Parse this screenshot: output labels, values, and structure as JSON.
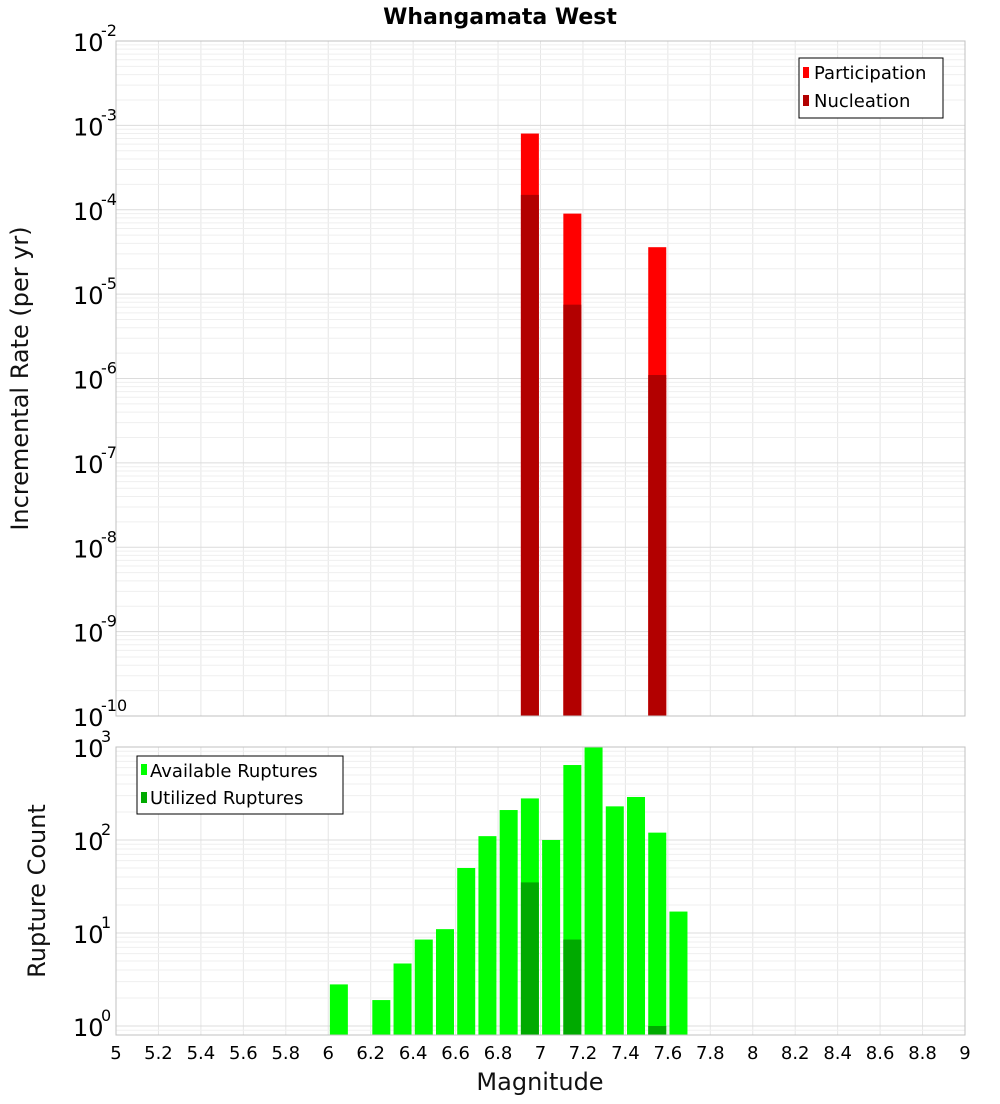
{
  "chart_data": [
    {
      "type": "bar",
      "title": "Whangamata West",
      "xlabel": "",
      "ylabel": "Incremental Rate (per yr)",
      "y_scale": "log",
      "ylim": [
        1e-10,
        0.01
      ],
      "xlim": [
        5,
        9
      ],
      "grid": true,
      "legend_position": "top-right",
      "y_ticks": [
        {
          "base": "10",
          "exp": "-10",
          "value": 1e-10
        },
        {
          "base": "10",
          "exp": "-9",
          "value": 1e-09
        },
        {
          "base": "10",
          "exp": "-8",
          "value": 1e-08
        },
        {
          "base": "10",
          "exp": "-7",
          "value": 1e-07
        },
        {
          "base": "10",
          "exp": "-6",
          "value": 1e-06
        },
        {
          "base": "10",
          "exp": "-5",
          "value": 1e-05
        },
        {
          "base": "10",
          "exp": "-4",
          "value": 0.0001
        },
        {
          "base": "10",
          "exp": "-3",
          "value": 0.001
        },
        {
          "base": "10",
          "exp": "-2",
          "value": 0.01
        }
      ],
      "series": [
        {
          "name": "Participation",
          "color": "#ff0000",
          "points": [
            {
              "x": 6.95,
              "y": 0.0008
            },
            {
              "x": 7.15,
              "y": 9e-05
            },
            {
              "x": 7.55,
              "y": 3.6e-05
            }
          ]
        },
        {
          "name": "Nucleation",
          "color": "#b20000",
          "points": [
            {
              "x": 6.95,
              "y": 0.00015
            },
            {
              "x": 7.15,
              "y": 7.5e-06
            },
            {
              "x": 7.55,
              "y": 1.1e-06
            }
          ]
        }
      ]
    },
    {
      "type": "bar",
      "title": "",
      "xlabel": "Magnitude",
      "ylabel": "Rupture Count",
      "y_scale": "log",
      "ylim": [
        0.8,
        1000
      ],
      "xlim": [
        5,
        9
      ],
      "grid": true,
      "legend_position": "top-left",
      "y_ticks": [
        {
          "base": "10",
          "exp": "0",
          "value": 1
        },
        {
          "base": "10",
          "exp": "1",
          "value": 10
        },
        {
          "base": "10",
          "exp": "2",
          "value": 100
        },
        {
          "base": "10",
          "exp": "3",
          "value": 1000
        }
      ],
      "x_ticks": [
        "5",
        "5.2",
        "5.4",
        "5.6",
        "5.8",
        "6",
        "6.2",
        "6.4",
        "6.6",
        "6.8",
        "7",
        "7.2",
        "7.4",
        "7.6",
        "7.8",
        "8",
        "8.2",
        "8.4",
        "8.6",
        "8.8",
        "9"
      ],
      "series": [
        {
          "name": "Available Ruptures",
          "color": "#00ff00",
          "points": [
            {
              "x": 6.05,
              "y": 2.8
            },
            {
              "x": 6.25,
              "y": 1.9
            },
            {
              "x": 6.35,
              "y": 4.7
            },
            {
              "x": 6.45,
              "y": 8.5
            },
            {
              "x": 6.55,
              "y": 11
            },
            {
              "x": 6.65,
              "y": 50
            },
            {
              "x": 6.75,
              "y": 110
            },
            {
              "x": 6.85,
              "y": 210
            },
            {
              "x": 6.95,
              "y": 280
            },
            {
              "x": 7.05,
              "y": 100
            },
            {
              "x": 7.15,
              "y": 640
            },
            {
              "x": 7.25,
              "y": 1000
            },
            {
              "x": 7.35,
              "y": 230
            },
            {
              "x": 7.45,
              "y": 290
            },
            {
              "x": 7.55,
              "y": 120
            },
            {
              "x": 7.65,
              "y": 17
            }
          ]
        },
        {
          "name": "Utilized Ruptures",
          "color": "#00aa00",
          "points": [
            {
              "x": 6.95,
              "y": 35
            },
            {
              "x": 7.15,
              "y": 8.5
            },
            {
              "x": 7.55,
              "y": 1.0
            }
          ]
        }
      ]
    }
  ]
}
